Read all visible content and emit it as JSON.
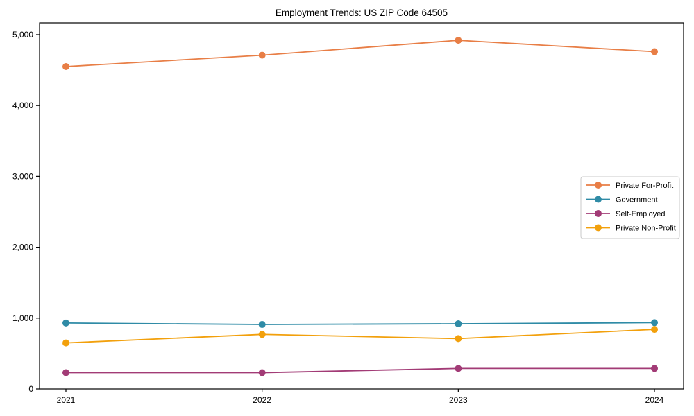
{
  "page": {
    "background": "#ffffff"
  },
  "chart_data": {
    "type": "line",
    "title": "Employment Trends: US ZIP Code 64505",
    "xlabel": "",
    "ylabel": "",
    "x": [
      2021,
      2022,
      2023,
      2024
    ],
    "x_tick_labels": [
      "2021",
      "2022",
      "2023",
      "2024"
    ],
    "series": [
      {
        "name": "Private For-Profit",
        "color": "#E87E46",
        "values": [
          4550,
          4710,
          4920,
          4760
        ]
      },
      {
        "name": "Government",
        "color": "#2F8BA6",
        "values": [
          930,
          910,
          920,
          935
        ]
      },
      {
        "name": "Self-Employed",
        "color": "#A23B76",
        "values": [
          230,
          230,
          290,
          290
        ]
      },
      {
        "name": "Private Non-Profit",
        "color": "#F2A00C",
        "values": [
          650,
          770,
          710,
          840
        ]
      }
    ],
    "ylim": [
      0,
      5166
    ],
    "yticks": [
      0,
      1000,
      2000,
      3000,
      4000,
      5000
    ],
    "ytick_labels": [
      "0",
      "1,000",
      "2,000",
      "3,000",
      "4,000",
      "5,000"
    ],
    "grid": false,
    "marker": "circle",
    "legend_position": "center-right",
    "axis_color": "#000000",
    "legend_border_color": "#c9c9c9",
    "legend_background": "#ffffff"
  }
}
